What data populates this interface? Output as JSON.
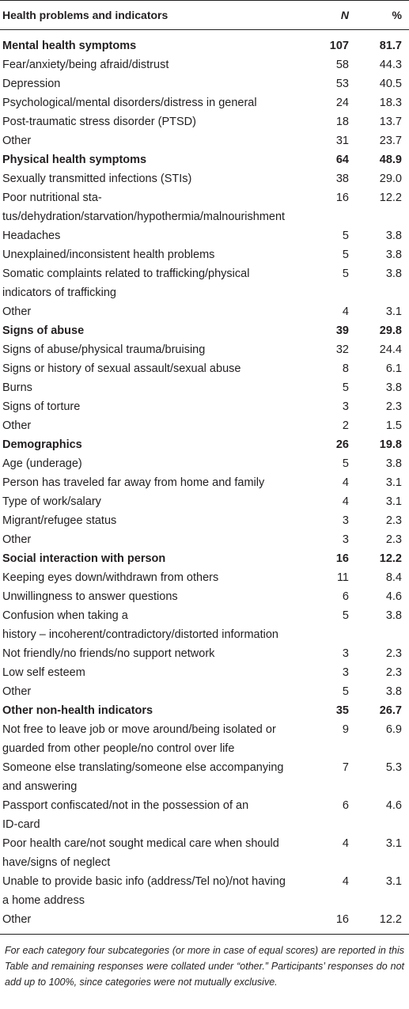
{
  "table": {
    "header": {
      "label": "Health problems and indicators",
      "n": "N",
      "pct": "%"
    },
    "rows": [
      {
        "label": "Mental health symptoms",
        "n": "107",
        "pct": "81.7",
        "category": true
      },
      {
        "label": "Fear/anxiety/being afraid/distrust",
        "n": "58",
        "pct": "44.3"
      },
      {
        "label": "Depression",
        "n": "53",
        "pct": "40.5"
      },
      {
        "label": "Psychological/mental disorders/distress in general",
        "n": "24",
        "pct": "18.3"
      },
      {
        "label": "Post-traumatic stress disorder (PTSD)",
        "n": "18",
        "pct": "13.7"
      },
      {
        "label": "Other",
        "n": "31",
        "pct": "23.7"
      },
      {
        "label": "Physical health symptoms",
        "n": "64",
        "pct": "48.9",
        "category": true
      },
      {
        "label": "Sexually transmitted infections (STIs)",
        "n": "38",
        "pct": "29.0"
      },
      {
        "label": "Poor nutritional sta-",
        "label2": "tus/dehydration/starvation/hypothermia/malnourishment",
        "n": "16",
        "pct": "12.2"
      },
      {
        "label": "Headaches",
        "n": "5",
        "pct": "3.8"
      },
      {
        "label": "Unexplained/inconsistent health problems",
        "n": "5",
        "pct": "3.8"
      },
      {
        "label": "Somatic complaints related to trafficking/physical",
        "label2": "indicators of trafficking",
        "n": "5",
        "pct": "3.8"
      },
      {
        "label": "Other",
        "n": "4",
        "pct": "3.1"
      },
      {
        "label": "Signs of abuse",
        "n": "39",
        "pct": "29.8",
        "category": true
      },
      {
        "label": "Signs of abuse/physical trauma/bruising",
        "n": "32",
        "pct": "24.4"
      },
      {
        "label": "Signs or history of sexual assault/sexual abuse",
        "n": "8",
        "pct": "6.1"
      },
      {
        "label": "Burns",
        "n": "5",
        "pct": "3.8"
      },
      {
        "label": "Signs of torture",
        "n": "3",
        "pct": "2.3"
      },
      {
        "label": "Other",
        "n": "2",
        "pct": "1.5"
      },
      {
        "label": "Demographics",
        "n": "26",
        "pct": "19.8",
        "category": true
      },
      {
        "label": "Age (underage)",
        "n": "5",
        "pct": "3.8"
      },
      {
        "label": "Person has traveled far away from home and family",
        "n": "4",
        "pct": "3.1"
      },
      {
        "label": "Type of work/salary",
        "n": "4",
        "pct": "3.1"
      },
      {
        "label": "Migrant/refugee status",
        "n": "3",
        "pct": "2.3"
      },
      {
        "label": "Other",
        "n": "3",
        "pct": "2.3"
      },
      {
        "label": "Social interaction with person",
        "n": "16",
        "pct": "12.2",
        "category": true
      },
      {
        "label": "Keeping eyes down/withdrawn from others",
        "n": "11",
        "pct": "8.4"
      },
      {
        "label": "Unwillingness to answer questions",
        "n": "6",
        "pct": "4.6"
      },
      {
        "label": "Confusion when taking a",
        "label2": "history – incoherent/contradictory/distorted information",
        "n": "5",
        "pct": "3.8"
      },
      {
        "label": "Not friendly/no friends/no support network",
        "n": "3",
        "pct": "2.3"
      },
      {
        "label": "Low self esteem",
        "n": "3",
        "pct": "2.3"
      },
      {
        "label": "Other",
        "n": "5",
        "pct": "3.8"
      },
      {
        "label": "Other non-health indicators",
        "n": "35",
        "pct": "26.7",
        "category": true
      },
      {
        "label": "Not free to leave job or move around/being isolated or",
        "label2": "guarded from other people/no control over life",
        "n": "9",
        "pct": "6.9"
      },
      {
        "label": "Someone else translating/someone else accompanying",
        "label2": "and answering",
        "n": "7",
        "pct": "5.3"
      },
      {
        "label": "Passport confiscated/not in the possession of an",
        "label2": "ID-card",
        "n": "6",
        "pct": "4.6"
      },
      {
        "label": "Poor health care/not sought medical care when should",
        "label2": "have/signs of neglect",
        "n": "4",
        "pct": "3.1"
      },
      {
        "label": "Unable to provide basic info (address/Tel no)/not having",
        "label2": "a home address",
        "n": "4",
        "pct": "3.1"
      },
      {
        "label": "Other",
        "n": "16",
        "pct": "12.2"
      }
    ]
  },
  "footnote": "For each category four subcategories (or more in case of equal scores) are reported in this Table and remaining responses were collated under “other.” Participants’ responses do not add up to 100%, since categories were not mutually exclusive."
}
